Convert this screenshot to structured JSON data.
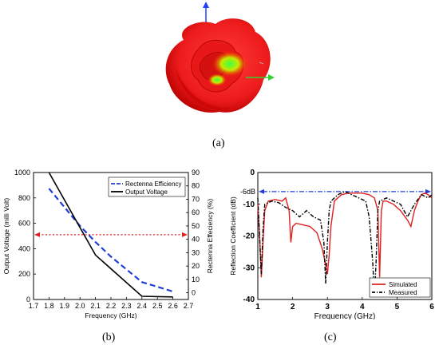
{
  "panels": {
    "a": {
      "label": "(a)"
    },
    "b": {
      "label": "(b)"
    },
    "c": {
      "label": "(c)"
    }
  },
  "chart_data": [
    {
      "id": "b",
      "type": "line",
      "xlabel": "Frequency (GHz)",
      "ylabel_left": "Output Voltage (milli Volt)",
      "ylabel_right": "Rectenna Effeciency (%)",
      "xlim": [
        1.7,
        2.7
      ],
      "ylim_left": [
        0,
        1000
      ],
      "ylim_right": [
        -5,
        90
      ],
      "xticks": [
        "1.7",
        "1.8",
        "1.9",
        "2.0",
        "2.1",
        "2.2",
        "2.3",
        "2.4",
        "2.5",
        "2.6",
        "2.7"
      ],
      "yticks_left": [
        "0",
        "200",
        "400",
        "600",
        "800",
        "1000"
      ],
      "yticks_right": [
        "0",
        "10",
        "20",
        "30",
        "40",
        "50",
        "60",
        "70",
        "80",
        "90"
      ],
      "series": [
        {
          "name": "Rectenna Efficiency",
          "axis": "right",
          "style": "dashed",
          "color": "#1f3fd6",
          "x": [
            1.8,
            2.0,
            2.1,
            2.2,
            2.4,
            2.6
          ],
          "y": [
            78,
            50,
            38,
            27,
            8,
            1
          ]
        },
        {
          "name": "Output Voltage",
          "axis": "left",
          "style": "solid",
          "color": "#000000",
          "x": [
            1.8,
            2.1,
            2.4,
            2.6
          ],
          "y": [
            1000,
            350,
            25,
            20
          ]
        }
      ],
      "reference_line": {
        "axis": "left",
        "y": 510,
        "color": "#e02020",
        "style": "dotted-arrows"
      }
    },
    {
      "id": "c",
      "type": "line",
      "xlabel": "Frequency (GHz)",
      "ylabel": "Reflection Coefficient (dB)",
      "xlim": [
        1,
        6
      ],
      "ylim": [
        -40,
        0
      ],
      "xticks": [
        "1",
        "2",
        "3",
        "4",
        "5",
        "6"
      ],
      "yticks": [
        "0",
        "-10",
        "-20",
        "-30",
        "-40"
      ],
      "annotation": "-6dB",
      "reference_line": {
        "y": -6,
        "color": "#1f3fd6",
        "style": "dashdot-arrows"
      },
      "series": [
        {
          "name": "Simulated",
          "color": "#e02020",
          "style": "solid",
          "x": [
            1.0,
            1.05,
            1.1,
            1.15,
            1.2,
            1.3,
            1.5,
            1.7,
            1.8,
            1.9,
            1.95,
            2.0,
            2.1,
            2.3,
            2.5,
            2.7,
            2.85,
            2.95,
            3.0,
            3.05,
            3.1,
            3.2,
            3.4,
            3.6,
            3.8,
            4.0,
            4.2,
            4.35,
            4.45,
            4.5,
            4.55,
            4.6,
            4.7,
            4.9,
            5.1,
            5.3,
            5.4,
            5.5,
            5.6,
            5.7,
            5.8,
            5.9,
            6.0
          ],
          "y": [
            -10,
            -20,
            -33,
            -22,
            -12,
            -9,
            -8.5,
            -9,
            -8,
            -12,
            -22,
            -17,
            -16,
            -16.5,
            -17,
            -19,
            -24,
            -29,
            -32,
            -26,
            -17,
            -9,
            -7,
            -6.5,
            -6.5,
            -6.5,
            -7,
            -8,
            -12,
            -33,
            -12,
            -9,
            -9,
            -10,
            -12,
            -15,
            -17,
            -12,
            -9,
            -7,
            -6.5,
            -7,
            -8
          ]
        },
        {
          "name": "Measured",
          "color": "#000000",
          "style": "dashdot",
          "x": [
            1.0,
            1.05,
            1.1,
            1.15,
            1.2,
            1.4,
            1.6,
            1.8,
            2.0,
            2.2,
            2.4,
            2.6,
            2.8,
            2.9,
            2.95,
            3.0,
            3.05,
            3.1,
            3.3,
            3.5,
            3.7,
            3.9,
            4.1,
            4.2,
            4.3,
            4.35,
            4.4,
            4.45,
            4.5,
            4.7,
            4.9,
            5.1,
            5.3,
            5.5,
            5.7,
            5.9,
            6.0
          ],
          "y": [
            -8,
            -20,
            -32,
            -18,
            -10,
            -9,
            -9.5,
            -11,
            -12,
            -14,
            -12,
            -14,
            -15,
            -22,
            -35,
            -22,
            -12,
            -9,
            -7,
            -6,
            -7,
            -8,
            -9,
            -14,
            -28,
            -39,
            -28,
            -12,
            -9,
            -8,
            -9,
            -10,
            -14,
            -10,
            -7,
            -8,
            -7
          ]
        }
      ]
    }
  ]
}
